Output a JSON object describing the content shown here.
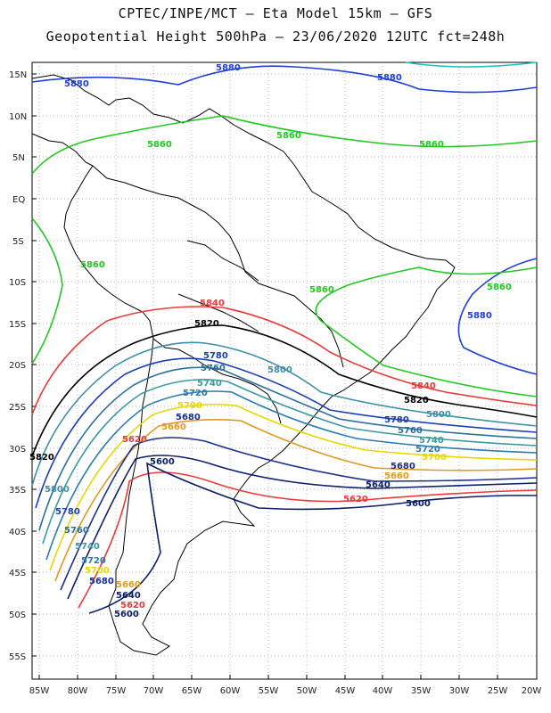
{
  "header": {
    "title_line1": "CPTEC/INPE/MCT –  Eta Model 15km – GFS",
    "title_line2": "Geopotential Height 500hPa – 23/06/2020 12UTC fct=248h"
  },
  "map": {
    "lat_labels": [
      "15N",
      "10N",
      "5N",
      "EQ",
      "5S",
      "10S",
      "15S",
      "20S",
      "25S",
      "30S",
      "35S",
      "40S",
      "45S",
      "50S",
      "55S"
    ],
    "lon_labels": [
      "85W",
      "80W",
      "75W",
      "70W",
      "65W",
      "60W",
      "55W",
      "50W",
      "45W",
      "40W",
      "35W",
      "30W",
      "25W",
      "20W"
    ],
    "grid": true,
    "coastline_color": "#000000",
    "contour_label_values": {
      "5880": "5880",
      "5860": "5860",
      "5840": "5840",
      "5820": "5820",
      "5800": "5800",
      "5780": "5780",
      "5760": "5760",
      "5740": "5740",
      "5720": "5720",
      "5700": "5700",
      "5680": "5680",
      "5660": "5660",
      "5640": "5640",
      "5620": "5620",
      "5600": "5600"
    },
    "contour_colors": {
      "5880": "#1f3fd6",
      "5860": "#22c822",
      "5840": "#e83a3a",
      "5820": "#000000",
      "5800": "#3d8fa8",
      "5780": "#1a3fb0",
      "5760": "#2c6e9c",
      "5740": "#3a9aa0",
      "5720": "#2b7bb0",
      "5700": "#e6d800",
      "5680": "#e09a20",
      "5660": "#1a2f8a",
      "5640": "#0c1f6a",
      "5620": "#e83a3a",
      "5600": "#0a1e66"
    },
    "top_contour_color": "#20c0c0"
  }
}
